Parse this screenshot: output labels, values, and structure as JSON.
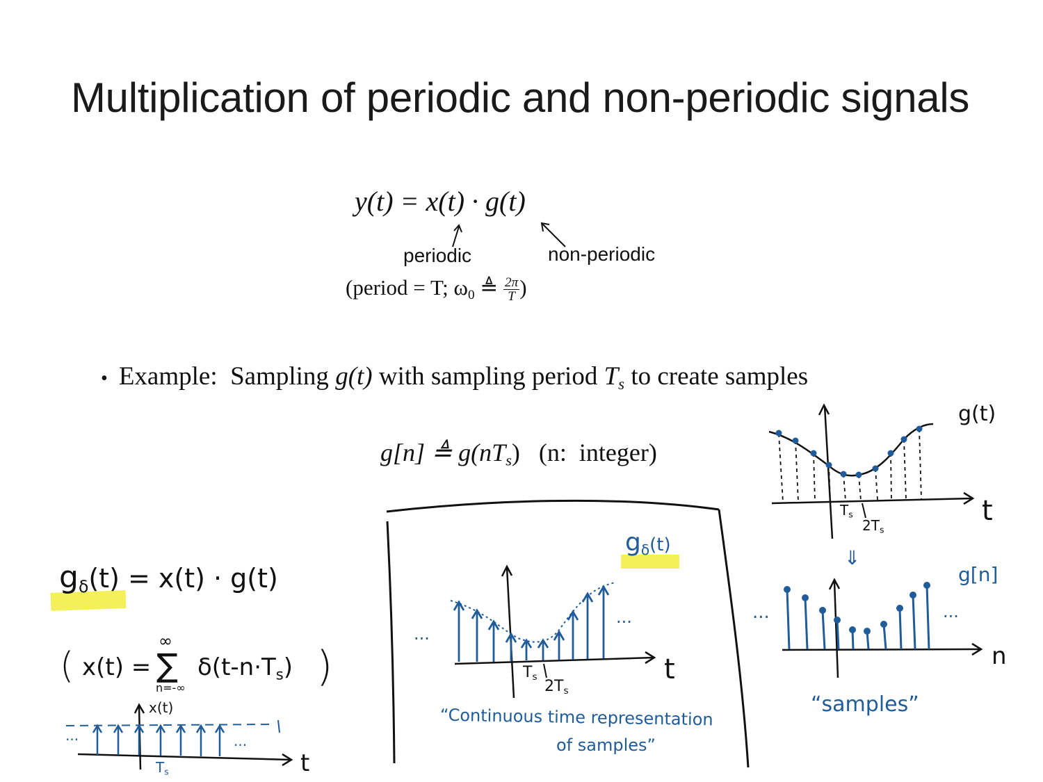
{
  "slide": {
    "title": "Multiplication of periodic and non-periodic signals"
  },
  "equation_main": {
    "lhs": "y",
    "text": "y(t) = x(t) · g(t)"
  },
  "annotations": {
    "periodic": "periodic",
    "non_periodic": "non-periodic",
    "period_note": "(period = T; ω",
    "period_sub": "0",
    "period_eq": "≜",
    "frac_num": "2π",
    "frac_den": "T",
    "close_paren": ")"
  },
  "bullet": {
    "symbol": "•",
    "text_a": "Example:  Sampling ",
    "g_of_t": "g(t)",
    "text_b": " with sampling period ",
    "Ts": "T",
    "Ts_sub": "s",
    "text_c": " to create samples"
  },
  "sample_def": {
    "lhs": "g[n] ≜ g(nT",
    "sub": "s",
    "rhs": ")   (n:  integer)"
  },
  "handwritten": {
    "g_delta_eq": "g",
    "g_delta_sub": "δ",
    "g_delta_rest": "(t) = x(t) · g(t)",
    "x_def_lparen": "(",
    "x_def_body": "x(t) = ",
    "sum_sym": "∑",
    "sum_top": "∞",
    "sum_bottom": "n=-∞",
    "x_def_delta": "δ(t-n·T",
    "x_def_sub": "s",
    "x_def_close": ")",
    "x_def_rparen": ")",
    "xt_label": "x(t)",
    "t_label_left": "t",
    "Ts_left": "T",
    "Ts_left_sub": "s",
    "dots_left": "...",
    "dots_left_2": "...",
    "g_delta_box": "g",
    "g_delta_box_sub": "δ",
    "g_delta_box_rest": "(t)",
    "box_dots_left": "...",
    "box_dots_right": "...",
    "box_t": "t",
    "box_Ts": "T",
    "box_Ts_sub": "s",
    "box_2Ts": "2T",
    "box_2Ts_sub": "s",
    "caption_line1": "“Continuous time representation",
    "caption_line2": "of samples”",
    "gt_label": "g(t)",
    "gt_t": "t",
    "gt_Ts": "T",
    "gt_Ts_sub": "s",
    "gt_2Ts": "2T",
    "gt_2Ts_sub": "s",
    "down_arrow": "⇓",
    "gn_label": "g[n]",
    "gn_n": "n",
    "gn_dots_left": "...",
    "gn_dots_right": "...",
    "samples_caption": "“samples”"
  },
  "colors": {
    "ink": "#111111",
    "blue_ink": "#1f5c99",
    "highlight": "#f3f05a"
  }
}
